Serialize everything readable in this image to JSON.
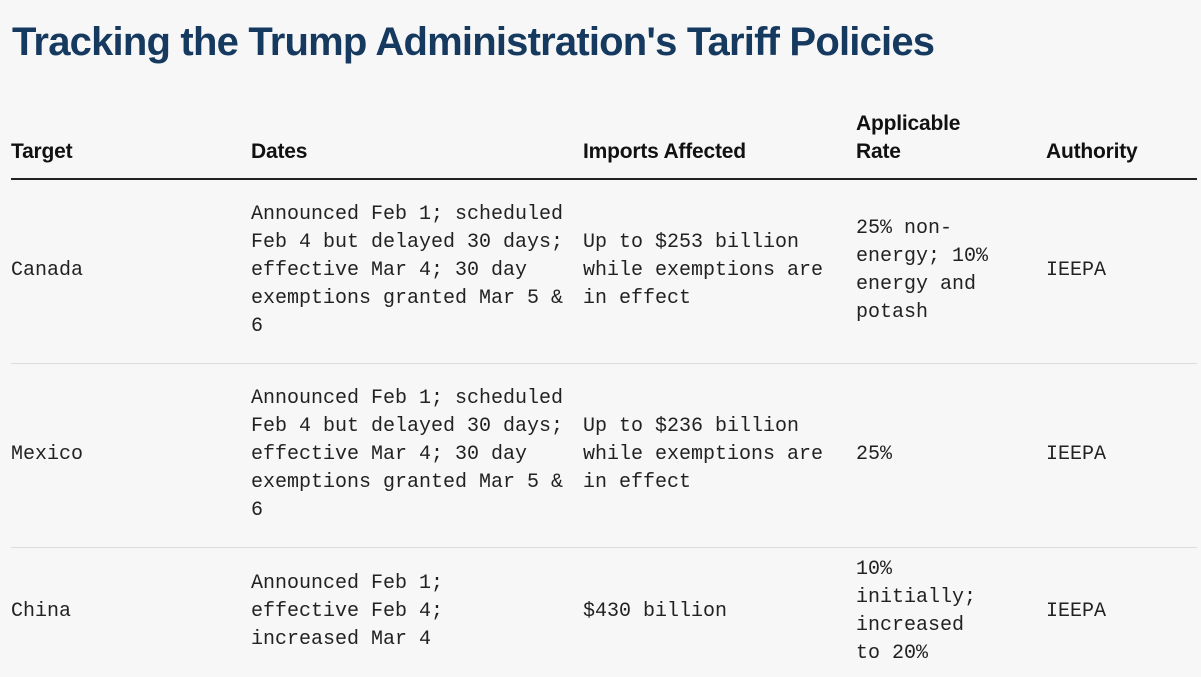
{
  "title": "Tracking the Trump Administration's Tariff Policies",
  "table": {
    "headers": {
      "target": "Target",
      "dates": "Dates",
      "imports": "Imports Affected",
      "rate": "Applicable Rate",
      "authority": "Authority"
    },
    "rows": [
      {
        "target": "Canada",
        "dates": "Announced Feb 1; scheduled Feb 4 but delayed 30 days; effective Mar 4; 30 day exemptions granted Mar 5 & 6",
        "imports": "Up to $253 billion while exemptions are in effect",
        "rate": "25% non-energy; 10% energy and potash",
        "authority": "IEEPA"
      },
      {
        "target": "Mexico",
        "dates": "Announced Feb 1; scheduled Feb 4 but delayed 30 days; effective Mar 4; 30 day exemptions granted Mar 5 & 6",
        "imports": "Up to $236 billion while exemptions are in effect",
        "rate": "25%",
        "authority": "IEEPA"
      },
      {
        "target": "China",
        "dates": "Announced Feb 1; effective Feb 4; increased Mar 4",
        "imports": "$430 billion",
        "rate": "10% initially; increased to 20%",
        "authority": "IEEPA"
      }
    ]
  }
}
